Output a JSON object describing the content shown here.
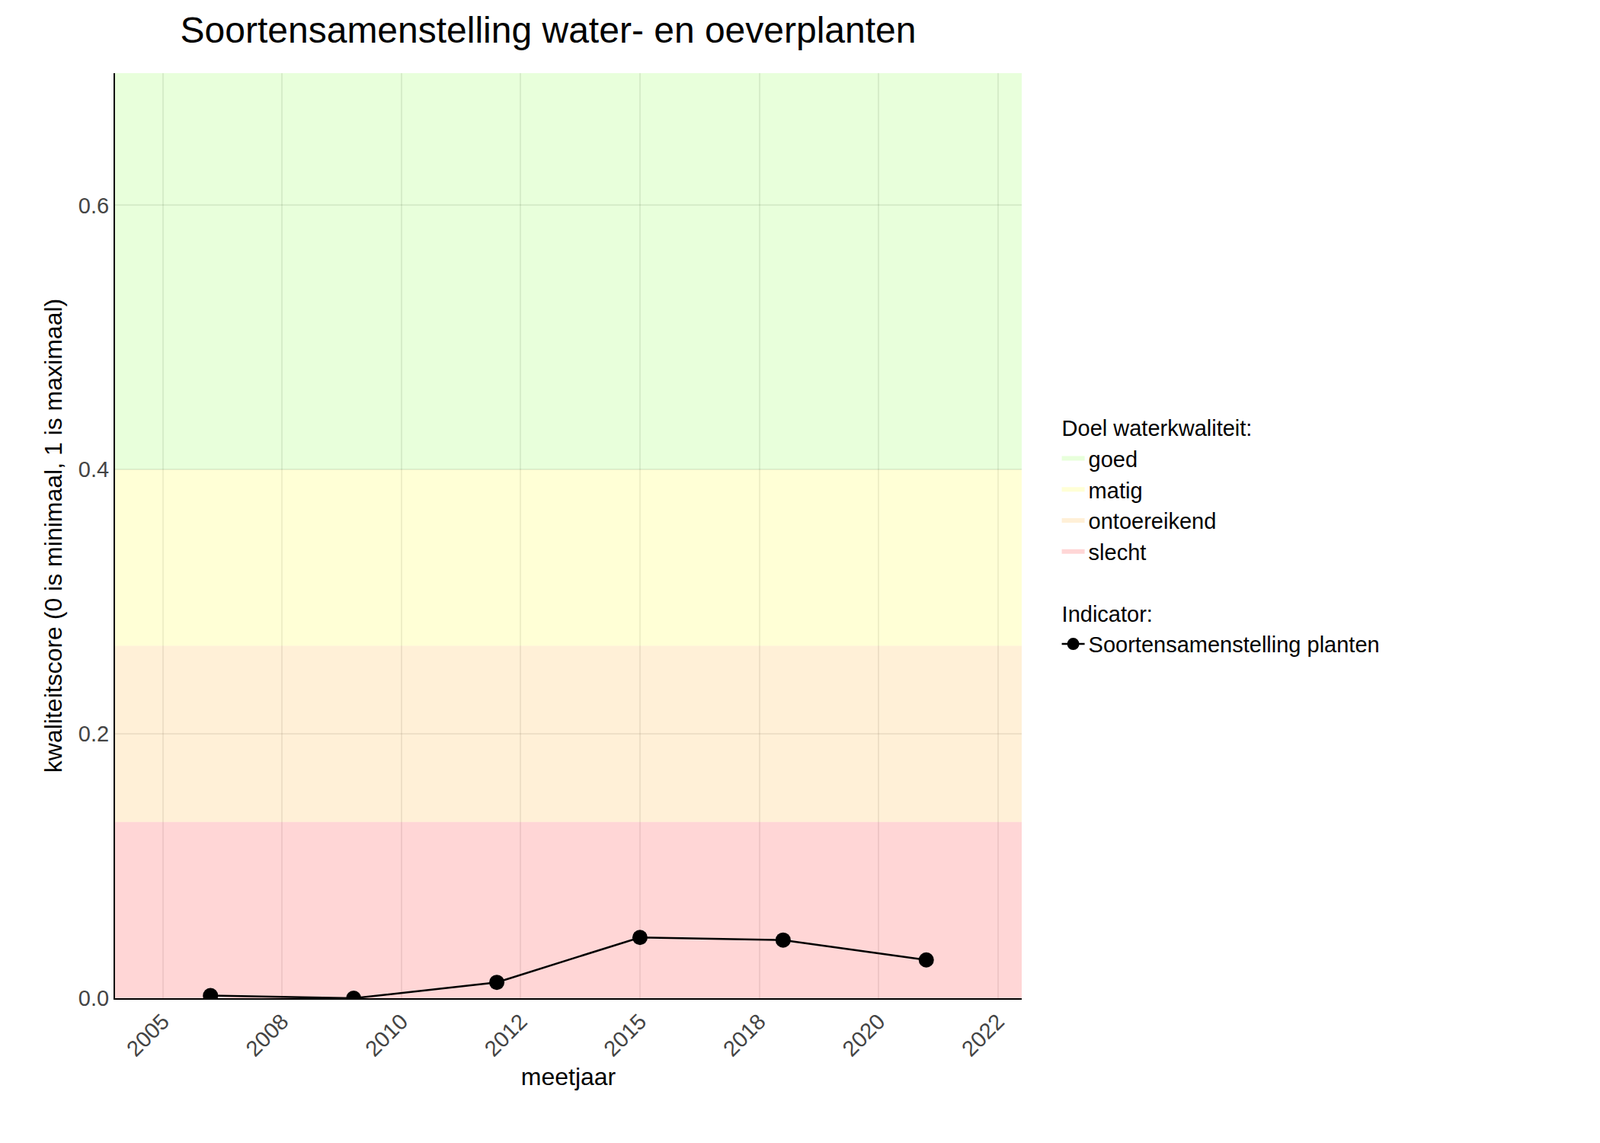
{
  "chart_data": {
    "type": "line",
    "title": "Soortensamenstelling water- en oeverplanten",
    "x_label": "meetjaar",
    "y_label": "kwaliteitscore (0 is minimaal, 1 is maximaal)",
    "x": [
      2006,
      2009,
      2012,
      2015,
      2018,
      2021
    ],
    "series": [
      {
        "name": "Soortensamenstelling planten",
        "color": "#000000",
        "marker": "circle",
        "line_style": "solid",
        "values": [
          0.002,
          0.0,
          0.012,
          0.046,
          0.044,
          0.029
        ]
      }
    ],
    "series_legend_title": "Indicator:",
    "bands_legend_title": "Doel waterkwaliteit:",
    "bands": [
      {
        "name": "goed",
        "color": "rgba(150,255,90,0.22)",
        "from": 0.4,
        "to": 0.7
      },
      {
        "name": "matig",
        "color": "rgba(255,255,120,0.3)",
        "from": 0.2667,
        "to": 0.4
      },
      {
        "name": "ontoereikend",
        "color": "rgba(255,200,110,0.28)",
        "from": 0.1333,
        "to": 0.2667
      },
      {
        "name": "slecht",
        "color": "rgba(255,120,120,0.3)",
        "from": 0,
        "to": 0.1333
      }
    ],
    "xlim": [
      2004,
      2023
    ],
    "xticks": [
      2005,
      {
        "value": 2007.5,
        "label": "2008"
      },
      2010,
      {
        "value": 2012.5,
        "label": "2012"
      },
      2015,
      {
        "value": 2017.5,
        "label": "2018"
      },
      2020,
      {
        "value": 2022.5,
        "label": "2022"
      }
    ],
    "ylim": [
      0,
      0.7
    ],
    "yticks": [
      {
        "value": 0,
        "label": "0.0"
      },
      0.2,
      0.4,
      0.6
    ],
    "grid": true
  }
}
